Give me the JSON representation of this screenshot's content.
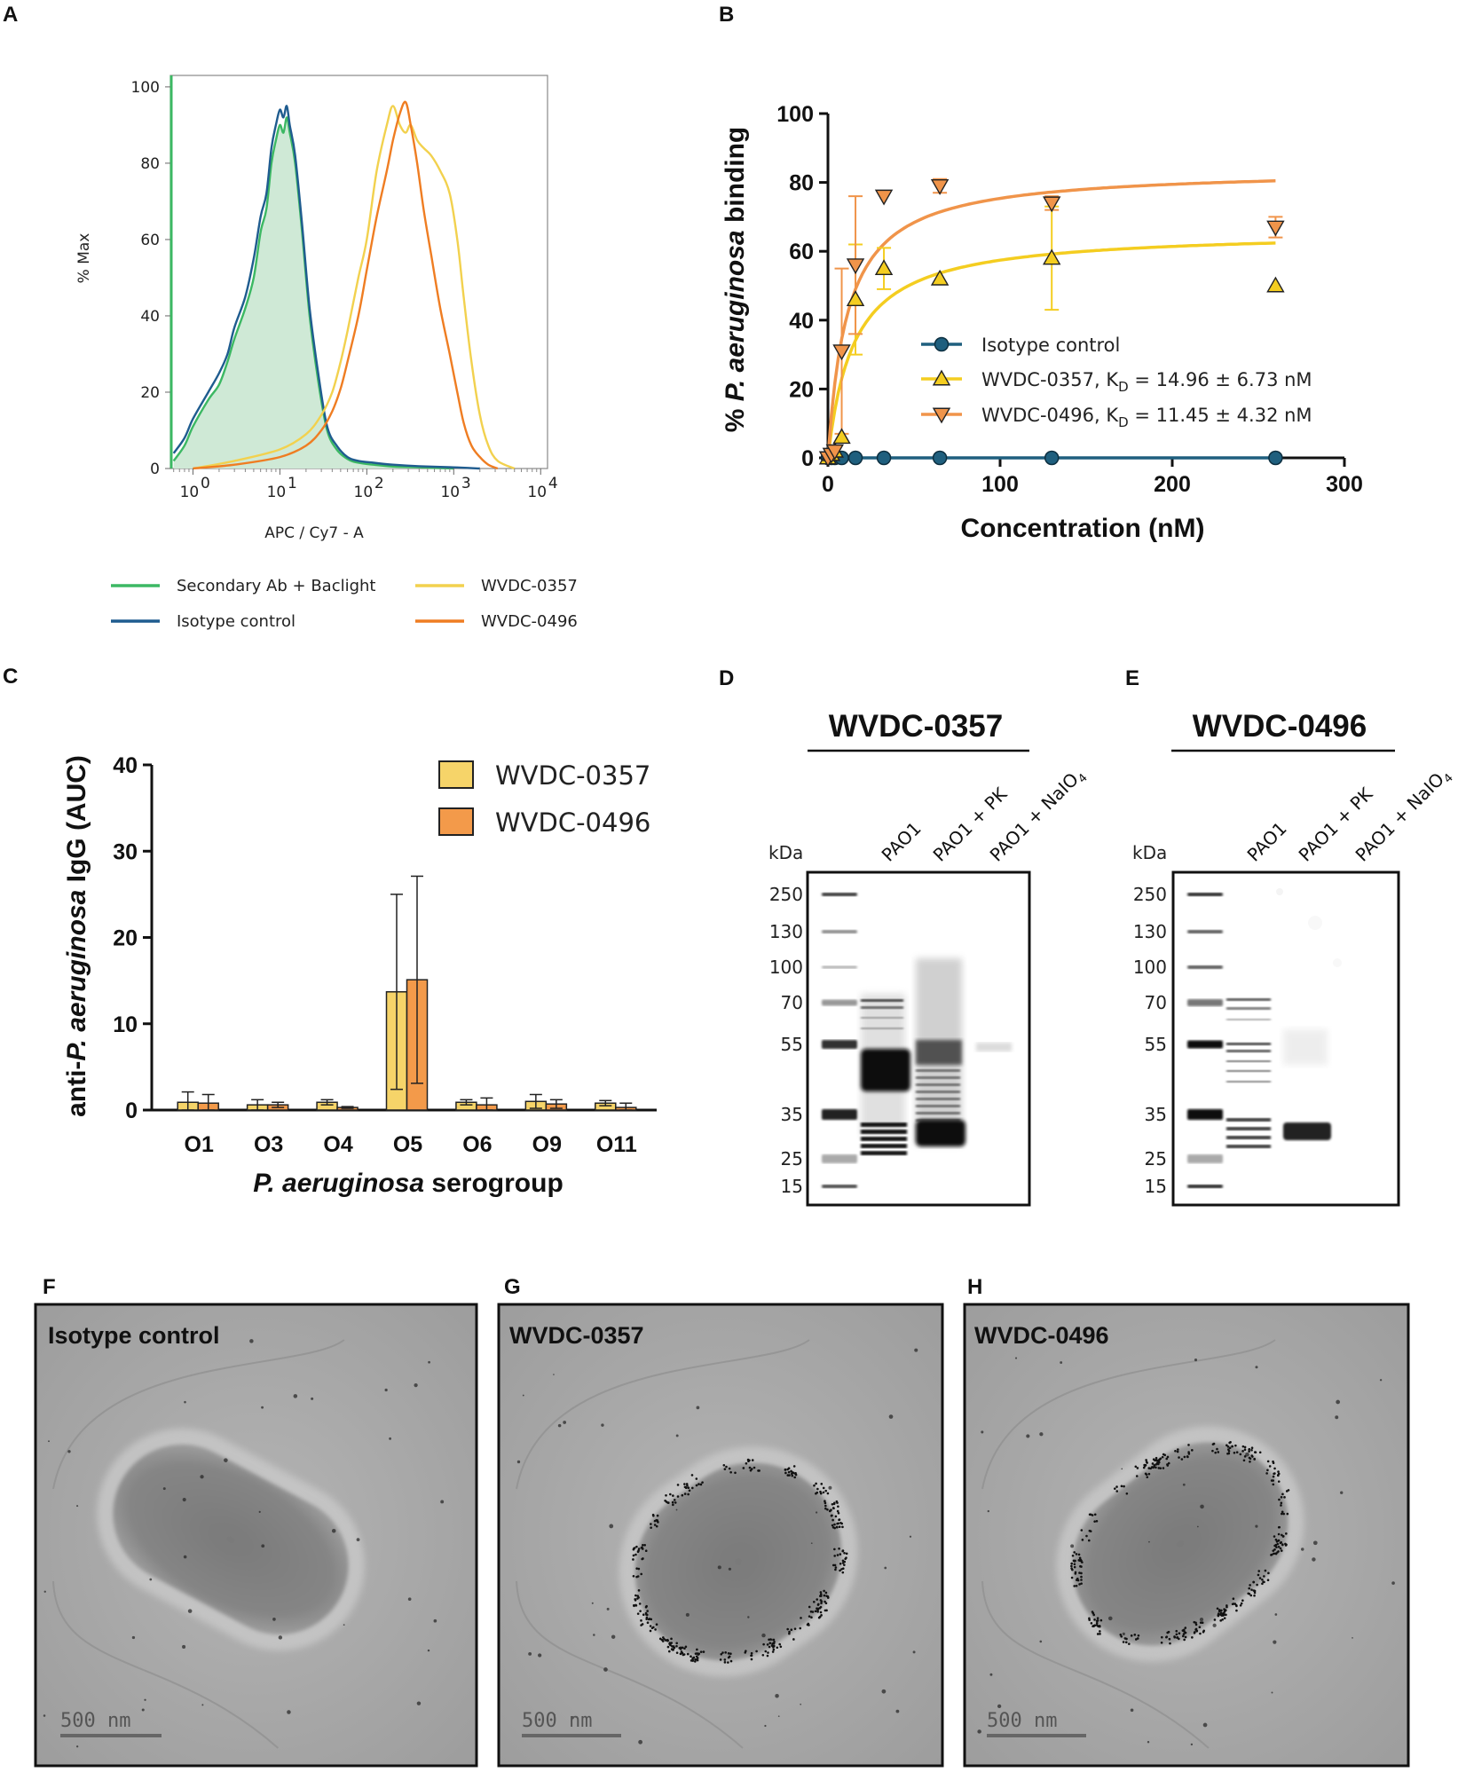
{
  "panels": {
    "A": "A",
    "B": "B",
    "C": "C",
    "D": "D",
    "E": "E",
    "F": "F",
    "G": "G",
    "H": "H"
  },
  "chart_data": [
    {
      "panel": "A",
      "type": "line",
      "title": "",
      "xlabel": "APC / Cy7 - A",
      "ylabel": "% Max",
      "xscale": "log",
      "xlim": [
        0.55,
        12000
      ],
      "ylim": [
        0,
        103
      ],
      "xtick_labels": [
        "10",
        "10",
        "10",
        "10",
        "10"
      ],
      "xtick_exponents": [
        "0",
        "1",
        "2",
        "3",
        "4"
      ],
      "ytick_labels": [
        "0",
        "20",
        "40",
        "60",
        "80",
        "100"
      ],
      "legend": [
        {
          "label": "Secondary Ab + Baclight",
          "color": "#3cb863"
        },
        {
          "label": "Isotype control",
          "color": "#1f5c8f"
        },
        {
          "label": "WVDC-0357",
          "color": "#f2d14e"
        },
        {
          "label": "WVDC-0496",
          "color": "#ef7d22"
        }
      ],
      "series": [
        {
          "name": "Secondary Ab + Baclight",
          "color": "#3cb863",
          "filled": true,
          "x": [
            0.6,
            0.8,
            1.0,
            1.5,
            2.0,
            2.5,
            3.0,
            4.0,
            5.0,
            6.0,
            7.0,
            8.0,
            9.0,
            10.0,
            11.0,
            12.0,
            13.0,
            15.0,
            18.0,
            22.0,
            28.0,
            35.0,
            45.0,
            60.0,
            80.0,
            120.0,
            200.0,
            400.0,
            1000.0
          ],
          "y": [
            2,
            6,
            11,
            18,
            22,
            28,
            34,
            42,
            50,
            62,
            68,
            80,
            86,
            90,
            88,
            92,
            88,
            80,
            62,
            40,
            22,
            10,
            5,
            2.5,
            1.5,
            1,
            0.5,
            0.3,
            0
          ]
        },
        {
          "name": "Isotype control",
          "color": "#1f5c8f",
          "filled": false,
          "x": [
            0.6,
            0.8,
            1.0,
            1.5,
            2.0,
            2.5,
            3.0,
            4.0,
            5.0,
            6.0,
            7.0,
            8.0,
            9.0,
            10.0,
            11.0,
            12.0,
            13.0,
            15.0,
            18.0,
            22.0,
            28.0,
            35.0,
            45.0,
            60.0,
            80.0,
            120.0,
            200.0,
            400.0,
            1000.0,
            2000.0
          ],
          "y": [
            4,
            8,
            13,
            20,
            25,
            30,
            37,
            45,
            55,
            66,
            72,
            84,
            90,
            94,
            92,
            95,
            90,
            82,
            64,
            42,
            24,
            11,
            6,
            3,
            2,
            1.5,
            1,
            0.6,
            0.3,
            0
          ]
        },
        {
          "name": "WVDC-0357",
          "color": "#f2d14e",
          "filled": false,
          "x": [
            1.0,
            3.0,
            10.0,
            20.0,
            30.0,
            40.0,
            50.0,
            60.0,
            80.0,
            100.0,
            130.0,
            170.0,
            200.0,
            240.0,
            280.0,
            320.0,
            380.0,
            450.0,
            550.0,
            700.0,
            900.0,
            1100.0,
            1300.0,
            1600.0,
            2000.0,
            2500.0,
            3200.0,
            5000.0
          ],
          "y": [
            0,
            2,
            5,
            9,
            14,
            20,
            28,
            36,
            50,
            60,
            78,
            90,
            95,
            90,
            88,
            90,
            86,
            84,
            82,
            78,
            72,
            60,
            45,
            28,
            14,
            6,
            2,
            0
          ]
        },
        {
          "name": "WVDC-0496",
          "color": "#ef7d22",
          "filled": false,
          "x": [
            1.0,
            3.0,
            10.0,
            20.0,
            30.0,
            40.0,
            50.0,
            60.0,
            80.0,
            100.0,
            130.0,
            170.0,
            200.0,
            240.0,
            280.0,
            320.0,
            380.0,
            450.0,
            550.0,
            700.0,
            900.0,
            1100.0,
            1300.0,
            1600.0,
            2000.0,
            2500.0,
            3200.0
          ],
          "y": [
            0,
            1,
            3,
            6,
            10,
            15,
            21,
            28,
            40,
            52,
            66,
            78,
            86,
            93,
            96,
            90,
            80,
            68,
            56,
            42,
            30,
            20,
            12,
            6,
            3,
            1,
            0
          ]
        }
      ]
    },
    {
      "panel": "B",
      "type": "scatter",
      "title": "",
      "xlabel": "Concentration (nM)",
      "ylabel_prefix": "% ",
      "ylabel_italic": "P. aeruginosa",
      "ylabel_suffix": " binding",
      "xlim": [
        0,
        300
      ],
      "ylim": [
        0,
        100
      ],
      "xtick_labels": [
        "0",
        "100",
        "200",
        "300"
      ],
      "ytick_labels": [
        "0",
        "20",
        "40",
        "60",
        "80",
        "100"
      ],
      "legend": [
        {
          "label": "Isotype control",
          "color": "#1f5f7e",
          "marker": "circle"
        },
        {
          "label": "WVDC-0357, K",
          "sub": "D",
          "rest": " = 14.96 ± 6.73 nM",
          "color": "#f4cd20",
          "marker": "triangle-up"
        },
        {
          "label": "WVDC-0496, K",
          "sub": "D",
          "rest": " = 11.45 ± 4.32 nM",
          "color": "#f0944a",
          "marker": "triangle-down"
        }
      ],
      "series": [
        {
          "name": "Isotype control",
          "color": "#1f5f7e",
          "marker": "circle",
          "x": [
            0.0,
            2.0,
            4.0,
            8.0,
            16.0,
            32.5,
            65.0,
            130.0,
            260.0
          ],
          "y": [
            0,
            0,
            0,
            0,
            0,
            0,
            0,
            0,
            0
          ],
          "err": [
            0,
            0,
            0,
            0,
            0,
            0,
            0,
            0,
            0
          ]
        },
        {
          "name": "WVDC-0357",
          "color": "#f4cd20",
          "marker": "triangle-up",
          "x": [
            0.0,
            2.0,
            4.0,
            8.0,
            16.0,
            32.5,
            65.0,
            130.0,
            260.0
          ],
          "y": [
            0,
            1,
            2,
            6,
            46,
            55,
            52,
            58,
            50
          ],
          "err": [
            0,
            0,
            0,
            0,
            16,
            6,
            0,
            15,
            0
          ],
          "fit": {
            "model": "one-site specific binding",
            "Bmax": 66,
            "Kd": 14.96
          }
        },
        {
          "name": "WVDC-0496",
          "color": "#f0944a",
          "marker": "triangle-down",
          "x": [
            0.0,
            2.0,
            4.0,
            8.0,
            16.0,
            32.5,
            65.0,
            130.0,
            260.0
          ],
          "y": [
            0,
            1,
            2,
            31,
            56,
            76,
            79,
            74,
            67
          ],
          "err": [
            0,
            0,
            0,
            24,
            20,
            0,
            2,
            2,
            3
          ],
          "fit": {
            "model": "one-site specific binding",
            "Bmax": 84,
            "Kd": 11.45
          }
        }
      ]
    },
    {
      "panel": "C",
      "type": "bar",
      "title": "",
      "xlabel_italic": "P. aeruginosa",
      "xlabel_suffix": " serogroup",
      "ylabel_prefix": "anti-",
      "ylabel_italic": "P. aeruginosa",
      "ylabel_suffix": " IgG (AUC)",
      "ylim": [
        0,
        40
      ],
      "ytick_labels": [
        "0",
        "10",
        "20",
        "30",
        "40"
      ],
      "categories": [
        "O1",
        "O3",
        "O4",
        "O5",
        "O6",
        "O9",
        "O11"
      ],
      "series": [
        {
          "name": "WVDC-0357",
          "color": "#f6d469",
          "values": [
            0.9,
            0.6,
            0.9,
            13.7,
            0.9,
            1.0,
            0.8
          ],
          "err": [
            1.2,
            0.6,
            0.3,
            11.3,
            0.3,
            0.8,
            0.3
          ]
        },
        {
          "name": "WVDC-0496",
          "color": "#f39a4a",
          "values": [
            0.8,
            0.6,
            0.3,
            15.1,
            0.6,
            0.7,
            0.3
          ],
          "err": [
            1.0,
            0.3,
            0.1,
            12.0,
            0.8,
            0.5,
            0.5
          ]
        }
      ]
    }
  ],
  "blots": [
    {
      "panel": "D",
      "title": "WVDC-0357",
      "kda_label": "kDa",
      "lanes": [
        "PAO1",
        "PAO1 + PK",
        "PAO1 + NaIO",
        "4"
      ],
      "markers": [
        "250",
        "130",
        "100",
        "70",
        "55",
        "35",
        "25",
        "15"
      ]
    },
    {
      "panel": "E",
      "title": "WVDC-0496",
      "kda_label": "kDa",
      "lanes": [
        "PAO1",
        "PAO1 + PK",
        "PAO1 + NaIO",
        "4"
      ],
      "markers": [
        "250",
        "130",
        "100",
        "70",
        "55",
        "35",
        "25",
        "15"
      ]
    }
  ],
  "em": [
    {
      "panel": "F",
      "label": "Isotype control",
      "scale": "500 nm"
    },
    {
      "panel": "G",
      "label": "WVDC-0357",
      "scale": "500 nm"
    },
    {
      "panel": "H",
      "label": "WVDC-0496",
      "scale": "500 nm"
    }
  ],
  "colors": {
    "green": "#3cb863",
    "blue": "#1f5c8f",
    "yellow": "#f2d14e",
    "orange": "#ef7d22"
  }
}
